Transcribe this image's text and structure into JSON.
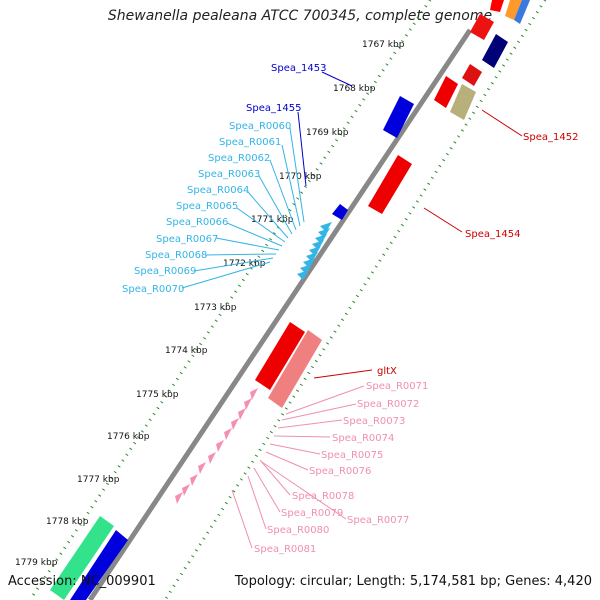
{
  "title": "Shewanella pealeana ATCC 700345, complete genome",
  "accession": "Accession: NC_009901",
  "summary": "Topology: circular; Length: 5,174,581 bp; Genes: 4,420",
  "colors": {
    "cds_red": "#ff0000",
    "cds_darkred": "#cc0000",
    "cds_blue": "#0000dd",
    "cds_navy": "#000077",
    "cds_khaki": "#b7b07a",
    "cds_salmon": "#f08080",
    "trna_cyan": "#33b5e6",
    "trna_pink": "#f48fb1",
    "cds_green": "#33e38c",
    "backbone": "#888888",
    "tick": "#2a8a2a",
    "label_red": "#cc0000",
    "label_blue": "#0000cc",
    "label_cyan": "#33b5e6",
    "label_pink": "#f08fb0"
  },
  "kbp_ticks": [
    "1767 kbp",
    "1768 kbp",
    "1769 kbp",
    "1770 kbp",
    "1771 kbp",
    "1772 kbp",
    "1773 kbp",
    "1774 kbp",
    "1775 kbp",
    "1776 kbp",
    "1777 kbp",
    "1778 kbp",
    "1779 kbp"
  ],
  "labels": {
    "spea_1453": "Spea_1453",
    "spea_1455": "Spea_1455",
    "spea_1452": "Spea_1452",
    "spea_1454": "Spea_1454",
    "gltx": "gltX",
    "trna_cyan": [
      "Spea_R0060",
      "Spea_R0061",
      "Spea_R0062",
      "Spea_R0063",
      "Spea_R0064",
      "Spea_R0065",
      "Spea_R0066",
      "Spea_R0067",
      "Spea_R0068",
      "Spea_R0069",
      "Spea_R0070"
    ],
    "trna_pink_right": [
      "Spea_R0071",
      "Spea_R0072",
      "Spea_R0073",
      "Spea_R0074",
      "Spea_R0075",
      "Spea_R0076"
    ],
    "trna_pink_lower": [
      "Spea_R0078",
      "Spea_R0079",
      "Spea_R0080",
      "Spea_R0081"
    ],
    "trna_pink_77": "Spea_R0077"
  }
}
